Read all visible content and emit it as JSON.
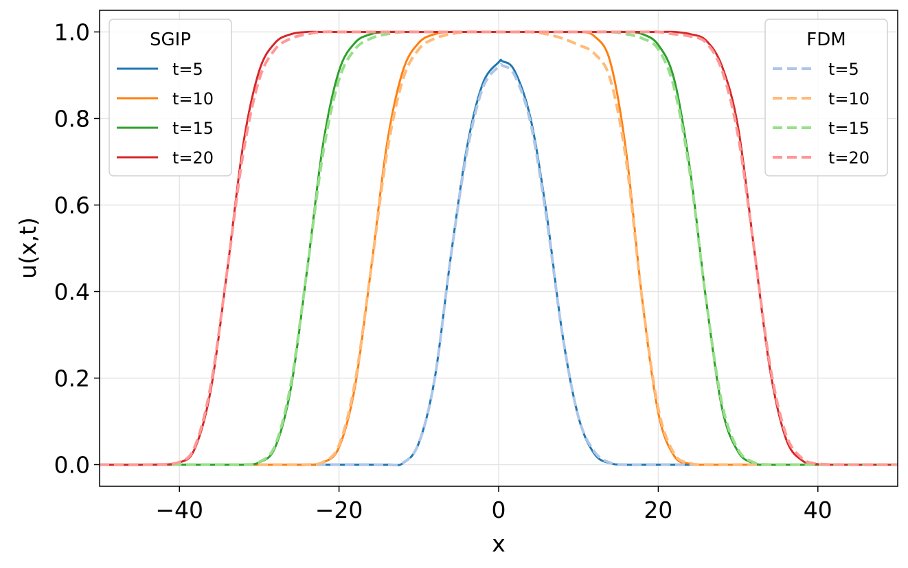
{
  "chart_data": {
    "type": "line",
    "xlabel": "x",
    "ylabel": "u(x,t)",
    "xlim": [
      -50,
      50
    ],
    "ylim": [
      -0.05,
      1.05
    ],
    "xticks": [
      -40,
      -20,
      0,
      20,
      40
    ],
    "xtick_labels": [
      "−40",
      "−20",
      "0",
      "20",
      "40"
    ],
    "yticks": [
      0.0,
      0.2,
      0.4,
      0.6,
      0.8,
      1.0
    ],
    "ytick_labels": [
      "0.0",
      "0.2",
      "0.4",
      "0.6",
      "0.8",
      "1.0"
    ],
    "grid": true,
    "legends": [
      {
        "title": "SGIP",
        "placement": "top-left",
        "style": "solid"
      },
      {
        "title": "FDM",
        "placement": "top-right",
        "style": "dashed"
      }
    ],
    "x": [
      -50,
      -44,
      -40,
      -38,
      -36,
      -34,
      -32,
      -30,
      -28,
      -26,
      -24,
      -22,
      -20,
      -18,
      -16,
      -14,
      -12,
      -10,
      -8,
      -6,
      -4,
      -2,
      0,
      0.5,
      2,
      4,
      6,
      8,
      10,
      12,
      14,
      16,
      18,
      20,
      22,
      24,
      26,
      28,
      30,
      32,
      34,
      36,
      38,
      40,
      44,
      50
    ],
    "series": [
      {
        "name": "t=5",
        "group": "SGIP",
        "color": "#1f77b4",
        "values": [
          0,
          0,
          0,
          0,
          0,
          0,
          0,
          0,
          0,
          0,
          0,
          0,
          0,
          0,
          0,
          0,
          0.003,
          0.05,
          0.2,
          0.48,
          0.73,
          0.88,
          0.93,
          0.932,
          0.91,
          0.8,
          0.58,
          0.3,
          0.11,
          0.025,
          0.003,
          0,
          0,
          0,
          0,
          0,
          0,
          0,
          0,
          0,
          0,
          0,
          0,
          0,
          0,
          0
        ]
      },
      {
        "name": "t=10",
        "group": "SGIP",
        "color": "#ff7f0e",
        "values": [
          0,
          0,
          0,
          0,
          0,
          0,
          0,
          0,
          0,
          0,
          0,
          0.005,
          0.04,
          0.18,
          0.45,
          0.74,
          0.91,
          0.975,
          0.995,
          1,
          1,
          1,
          1,
          1,
          1,
          1,
          1,
          1,
          1,
          0.99,
          0.93,
          0.72,
          0.38,
          0.12,
          0.02,
          0.002,
          0,
          0,
          0,
          0,
          0,
          0,
          0,
          0,
          0,
          0
        ]
      },
      {
        "name": "t=15",
        "group": "SGIP",
        "color": "#2ca02c",
        "values": [
          0,
          0,
          0,
          0,
          0,
          0,
          0,
          0.005,
          0.04,
          0.18,
          0.45,
          0.74,
          0.91,
          0.975,
          0.995,
          1,
          1,
          1,
          1,
          1,
          1,
          1,
          1,
          1,
          1,
          1,
          1,
          1,
          1,
          1,
          1,
          1,
          0.995,
          0.97,
          0.89,
          0.68,
          0.38,
          0.13,
          0.03,
          0.003,
          0,
          0,
          0,
          0,
          0,
          0
        ]
      },
      {
        "name": "t=20",
        "group": "SGIP",
        "color": "#d62728",
        "values": [
          0,
          0,
          0.005,
          0.04,
          0.18,
          0.45,
          0.74,
          0.91,
          0.975,
          0.995,
          1,
          1,
          1,
          1,
          1,
          1,
          1,
          1,
          1,
          1,
          1,
          1,
          1,
          1,
          1,
          1,
          1,
          1,
          1,
          1,
          1,
          1,
          1,
          1,
          1,
          0.995,
          0.98,
          0.92,
          0.78,
          0.5,
          0.22,
          0.06,
          0.01,
          0.001,
          0,
          0
        ]
      },
      {
        "name": "t=5",
        "group": "FDM",
        "color": "#aec7e8",
        "values": [
          0,
          0,
          0,
          0,
          0,
          0,
          0,
          0,
          0,
          0,
          0,
          0,
          0,
          0,
          0,
          0,
          0.004,
          0.05,
          0.2,
          0.48,
          0.72,
          0.87,
          0.92,
          0.922,
          0.9,
          0.79,
          0.57,
          0.3,
          0.11,
          0.03,
          0.004,
          0,
          0,
          0,
          0,
          0,
          0,
          0,
          0,
          0,
          0,
          0,
          0,
          0,
          0,
          0
        ]
      },
      {
        "name": "t=10",
        "group": "FDM",
        "color": "#ffbb78",
        "values": [
          0,
          0,
          0,
          0,
          0,
          0,
          0,
          0,
          0,
          0,
          0,
          0.006,
          0.045,
          0.19,
          0.45,
          0.72,
          0.89,
          0.96,
          0.985,
          0.995,
          1,
          1,
          1,
          1,
          1,
          1,
          0.995,
          0.985,
          0.97,
          0.95,
          0.89,
          0.7,
          0.38,
          0.13,
          0.025,
          0.003,
          0,
          0,
          0,
          0,
          0,
          0,
          0,
          0,
          0,
          0
        ]
      },
      {
        "name": "t=15",
        "group": "FDM",
        "color": "#98df8a",
        "values": [
          0,
          0,
          0,
          0,
          0,
          0,
          0,
          0.006,
          0.045,
          0.19,
          0.45,
          0.72,
          0.89,
          0.96,
          0.985,
          0.995,
          1,
          1,
          1,
          1,
          1,
          1,
          1,
          1,
          1,
          1,
          1,
          1,
          1,
          1,
          1,
          0.995,
          0.985,
          0.96,
          0.87,
          0.67,
          0.38,
          0.14,
          0.035,
          0.005,
          0,
          0,
          0,
          0,
          0,
          0
        ]
      },
      {
        "name": "t=20",
        "group": "FDM",
        "color": "#ff9896",
        "values": [
          0,
          0,
          0.006,
          0.045,
          0.19,
          0.45,
          0.72,
          0.89,
          0.96,
          0.985,
          0.995,
          1,
          1,
          1,
          1,
          1,
          1,
          1,
          1,
          1,
          1,
          1,
          1,
          1,
          1,
          1,
          1,
          1,
          1,
          1,
          1,
          1,
          1,
          1,
          0.995,
          0.99,
          0.975,
          0.91,
          0.76,
          0.5,
          0.23,
          0.07,
          0.015,
          0.002,
          0,
          0
        ]
      }
    ]
  }
}
